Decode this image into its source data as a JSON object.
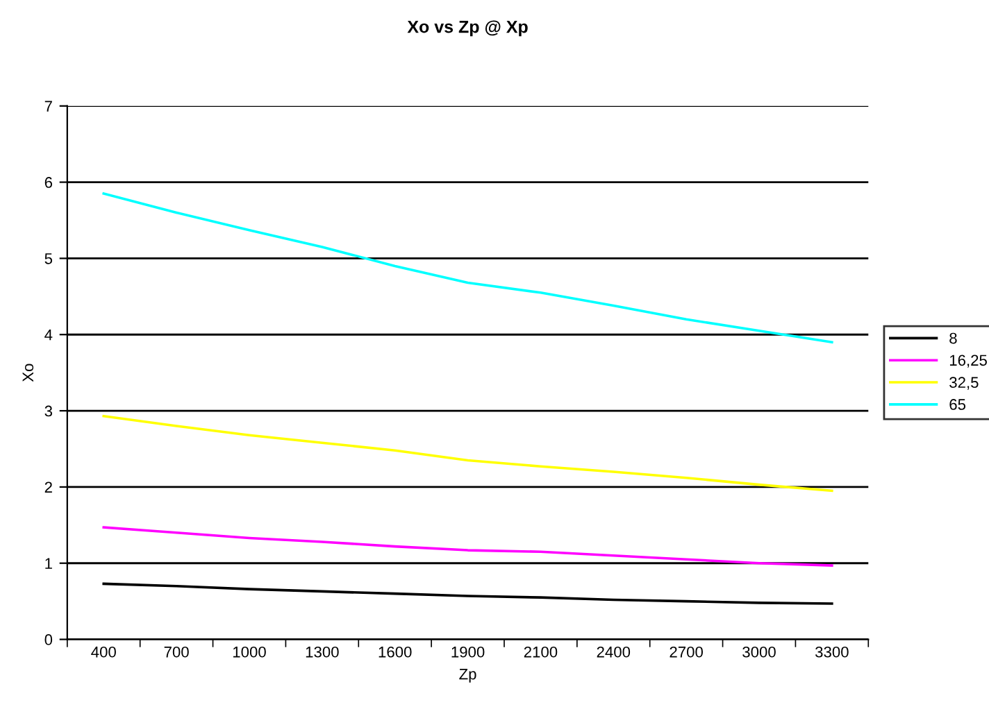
{
  "chart_data": {
    "type": "line",
    "title": "Xo vs Zp @ Xp",
    "xlabel": "Zp",
    "ylabel": "Xo",
    "categories": [
      "400",
      "700",
      "1000",
      "1300",
      "1600",
      "1900",
      "2100",
      "2400",
      "2700",
      "3000",
      "3300"
    ],
    "series": [
      {
        "name": "8",
        "color": "#000000",
        "values": [
          0.73,
          0.7,
          0.66,
          0.63,
          0.6,
          0.57,
          0.55,
          0.52,
          0.5,
          0.48,
          0.47
        ]
      },
      {
        "name": "16,25",
        "color": "#ff00ff",
        "values": [
          1.47,
          1.4,
          1.33,
          1.28,
          1.22,
          1.17,
          1.15,
          1.1,
          1.05,
          1.0,
          0.97
        ]
      },
      {
        "name": "32,5",
        "color": "#ffff00",
        "values": [
          2.93,
          2.8,
          2.68,
          2.58,
          2.48,
          2.35,
          2.27,
          2.2,
          2.12,
          2.03,
          1.95
        ]
      },
      {
        "name": "65",
        "color": "#00ffff",
        "values": [
          5.85,
          5.6,
          5.37,
          5.15,
          4.9,
          4.68,
          4.55,
          4.38,
          4.2,
          4.05,
          3.9
        ]
      }
    ],
    "ylim": [
      0,
      7
    ],
    "yticks": [
      0,
      1,
      2,
      3,
      4,
      5,
      6,
      7
    ],
    "grid": "y",
    "legend": "right",
    "marker": "none",
    "line_style": "solid"
  }
}
